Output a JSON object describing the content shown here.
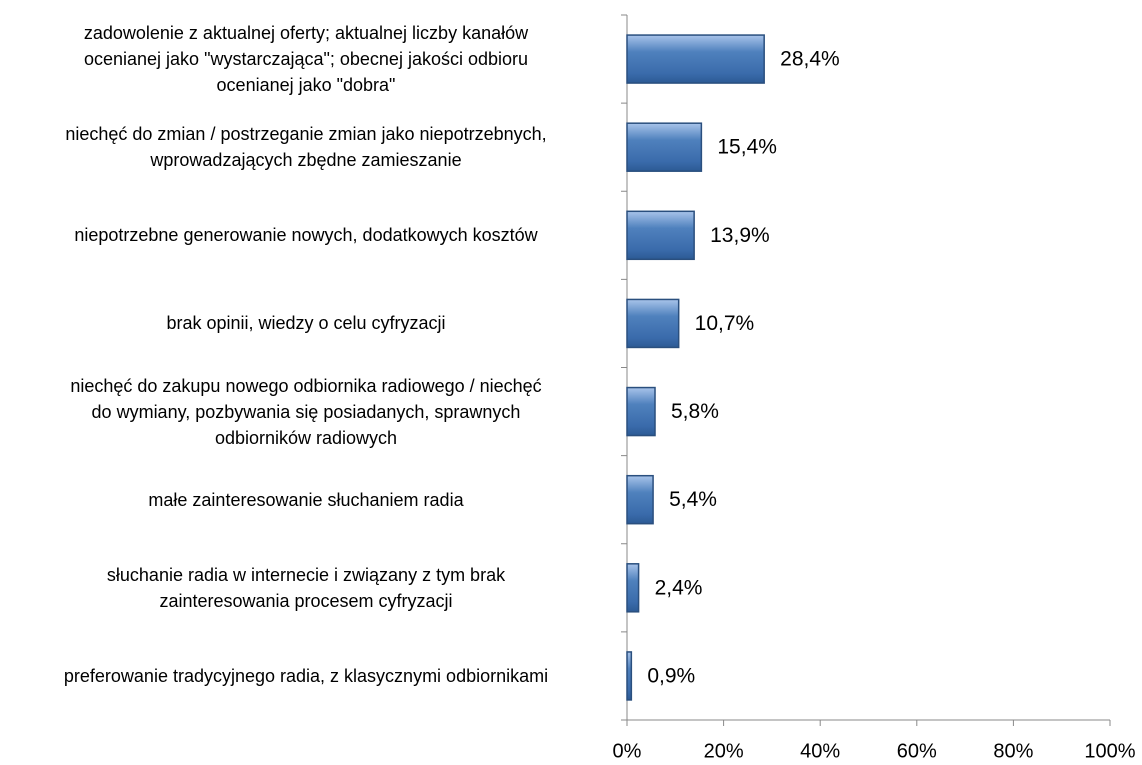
{
  "chart_data": {
    "type": "bar",
    "orientation": "horizontal",
    "categories": [
      "zadowolenie z aktualnej oferty; aktualnej liczby kanałów\nocenianej jako \"wystarczająca\"; obecnej jakości odbioru\nocenianej jako \"dobra\"",
      "niechęć do zmian / postrzeganie zmian jako niepotrzebnych,\nwprowadzających zbędne zamieszanie",
      "niepotrzebne generowanie nowych, dodatkowych kosztów",
      "brak opinii, wiedzy o celu cyfryzacji",
      "niechęć do zakupu nowego odbiornika radiowego / niechęć\ndo wymiany, pozbywania się posiadanych, sprawnych\nodbiorników radiowych",
      "małe zainteresowanie słuchaniem radia",
      "słuchanie radia w internecie i związany z tym brak\nzainteresowania procesem cyfryzacji",
      "preferowanie tradycyjnego radia, z klasycznymi odbiornikami"
    ],
    "values": [
      28.4,
      15.4,
      13.9,
      10.7,
      5.8,
      5.4,
      2.4,
      0.9
    ],
    "value_labels": [
      "28,4%",
      "15,4%",
      "13,9%",
      "10,7%",
      "5,8%",
      "5,4%",
      "2,4%",
      "0,9%"
    ],
    "color": "#4f81bd",
    "xlim": [
      0,
      100
    ],
    "xticks": [
      {
        "value": 0,
        "label": "0%"
      },
      {
        "value": 20,
        "label": "20%"
      },
      {
        "value": 40,
        "label": "40%"
      },
      {
        "value": 60,
        "label": "60%"
      },
      {
        "value": 80,
        "label": "80%"
      },
      {
        "value": 100,
        "label": "100%"
      }
    ],
    "grid": false
  }
}
